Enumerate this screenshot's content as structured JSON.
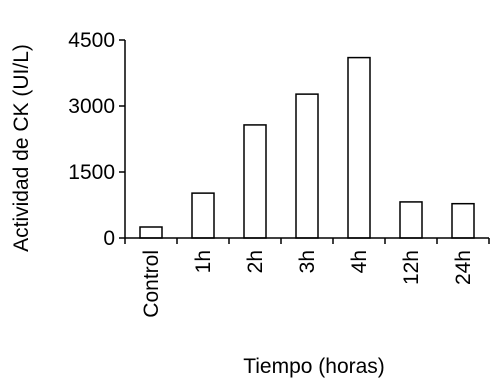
{
  "chart_data": {
    "type": "bar",
    "title": "",
    "xlabel": "Tiempo (horas)",
    "ylabel": "Actividad de CK (UI/L)",
    "categories": [
      "Control",
      "1h",
      "2h",
      "3h",
      "4h",
      "12h",
      "24h"
    ],
    "values": [
      250,
      1020,
      2570,
      3270,
      4100,
      820,
      780
    ],
    "ylim": [
      0,
      4500
    ],
    "yticks": [
      "0",
      "1500",
      "3000",
      "4500"
    ],
    "ytick_values": [
      0,
      1500,
      3000,
      4500
    ],
    "grid": false,
    "legend": "none",
    "bar_fill": "#ffffff",
    "bar_stroke": "#000000"
  }
}
